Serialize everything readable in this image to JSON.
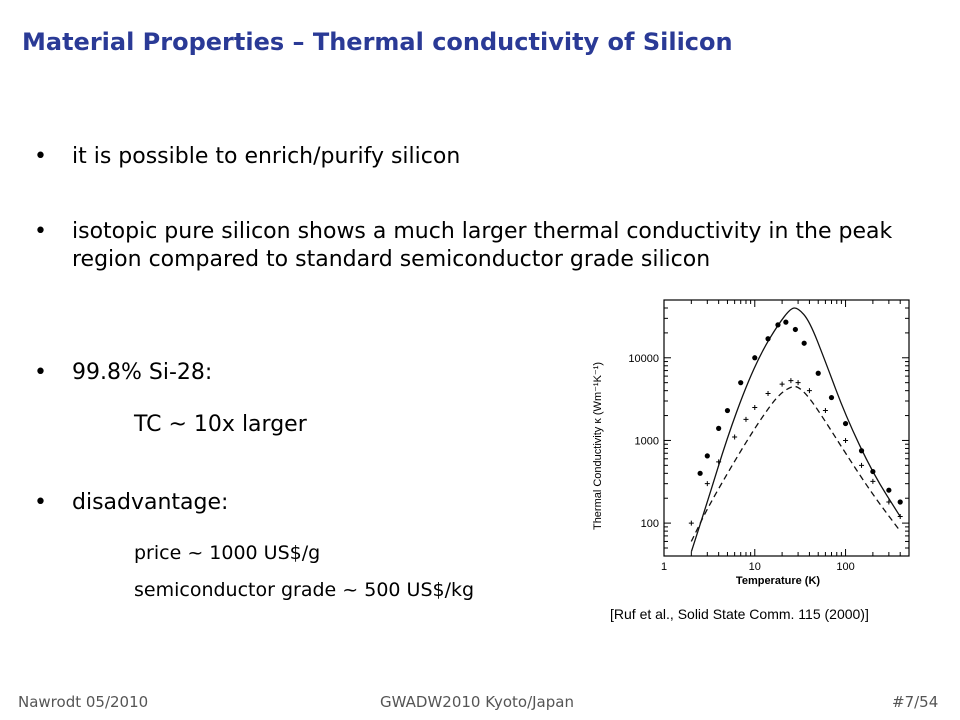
{
  "slide": {
    "title": "Material Properties – Thermal conductivity of Silicon",
    "bullets": [
      "it is possible to enrich/purify silicon",
      "isotopic pure silicon shows a much larger thermal conductivity in the peak region compared to standard semiconductor grade silicon",
      "99.8% Si-28:",
      "disadvantage:"
    ],
    "sub": {
      "tc": "TC ~ 10x larger",
      "price": "price ~ 1000 US$/g",
      "semi": "semiconductor grade ~ 500 US$/kg"
    },
    "bullet_glyph": "•"
  },
  "figure": {
    "caption": "[Ruf et al., Solid State Comm. 115 (2000)]"
  },
  "footer": {
    "left": "Nawrodt 05/2010",
    "center": "GWADW2010 Kyoto/Japan",
    "right": "#7/54"
  },
  "colors": {
    "title": "#2a3a96",
    "footer": "#555555"
  },
  "chart_data": {
    "type": "scatter",
    "xlabel": "Temperature (K)",
    "ylabel": "Thermal Conductivity κ (Wm⁻¹K⁻¹)",
    "xscale": "log",
    "yscale": "log",
    "xlim": [
      1,
      500
    ],
    "ylim": [
      40,
      50000
    ],
    "x_ticks": [
      1,
      10,
      100
    ],
    "y_ticks": [
      100,
      1000,
      10000
    ],
    "series": [
      {
        "style": "solid-line",
        "x": [
          2,
          3,
          5,
          8,
          12,
          18,
          25,
          30,
          40,
          60,
          100,
          200,
          400
        ],
        "y": [
          45,
          180,
          1100,
          4500,
          12000,
          25000,
          40000,
          40000,
          28000,
          9000,
          2000,
          400,
          120
        ]
      },
      {
        "style": "dashed-line",
        "x": [
          2,
          3,
          5,
          8,
          12,
          18,
          25,
          30,
          40,
          60,
          100,
          200,
          400
        ],
        "y": [
          60,
          150,
          400,
          950,
          1900,
          3500,
          4500,
          4500,
          3300,
          1700,
          700,
          220,
          80
        ]
      },
      {
        "style": "filled-circles",
        "x": [
          2.5,
          3,
          4,
          5,
          7,
          10,
          14,
          18,
          22,
          28,
          35,
          50,
          70,
          100,
          150,
          200,
          300,
          400
        ],
        "y": [
          400,
          650,
          1400,
          2300,
          5000,
          10000,
          17000,
          25000,
          27000,
          22000,
          15000,
          6500,
          3300,
          1600,
          750,
          420,
          250,
          180
        ]
      },
      {
        "style": "crosses",
        "x": [
          2,
          3,
          4,
          6,
          8,
          10,
          14,
          20,
          25,
          30,
          40,
          60,
          100,
          150,
          200,
          300,
          400
        ],
        "y": [
          100,
          300,
          550,
          1100,
          1800,
          2500,
          3700,
          4800,
          5300,
          5000,
          4000,
          2300,
          1000,
          500,
          320,
          180,
          120
        ]
      }
    ]
  }
}
